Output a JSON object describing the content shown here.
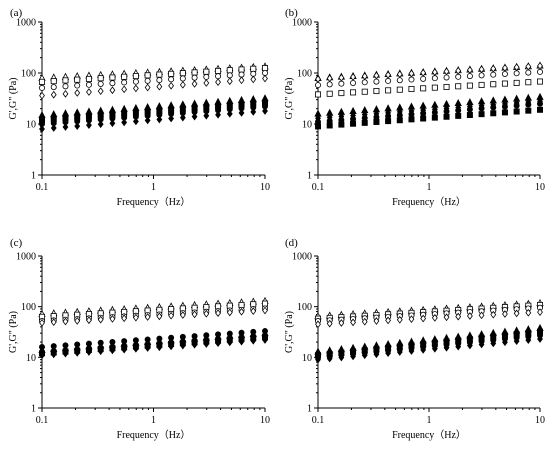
{
  "chart_data": [
    {
      "type": "scatter",
      "panel_label": "(a)",
      "xlabel": "Frequency（Hz）",
      "ylabel": "G',G\" (Pa)",
      "xscale": "log",
      "yscale": "log",
      "xlim": [
        0.1,
        10
      ],
      "ylim": [
        1,
        1000
      ],
      "x_ticks": [
        "0.1",
        "1",
        "10"
      ],
      "y_ticks": [
        "1",
        "10",
        "100",
        "1000"
      ],
      "grid": false,
      "n_points": 20,
      "series": [
        {
          "marker": "triangle",
          "filled": false,
          "start": 80,
          "end": 135
        },
        {
          "marker": "square",
          "filled": false,
          "start": 67,
          "end": 125
        },
        {
          "marker": "circle",
          "filled": false,
          "start": 51,
          "end": 100
        },
        {
          "marker": "diamond",
          "filled": false,
          "start": 36,
          "end": 78
        },
        {
          "marker": "triangle",
          "filled": true,
          "start": 15,
          "end": 32
        },
        {
          "marker": "square",
          "filled": true,
          "start": 12,
          "end": 26
        },
        {
          "marker": "circle",
          "filled": true,
          "start": 10,
          "end": 22
        },
        {
          "marker": "diamond",
          "filled": true,
          "start": 8,
          "end": 18
        }
      ]
    },
    {
      "type": "scatter",
      "panel_label": "(b)",
      "xlabel": "Frequency（Hz）",
      "ylabel": "G',G\" (Pa)",
      "xscale": "log",
      "yscale": "log",
      "xlim": [
        0.1,
        10
      ],
      "ylim": [
        1,
        1000
      ],
      "x_ticks": [
        "0.1",
        "1",
        "10"
      ],
      "y_ticks": [
        "1",
        "10",
        "100",
        "1000"
      ],
      "grid": false,
      "n_points": 20,
      "series": [
        {
          "marker": "triangle",
          "filled": false,
          "start": 80,
          "end": 140
        },
        {
          "marker": "diamond",
          "filled": false,
          "start": 76,
          "end": 138
        },
        {
          "marker": "circle",
          "filled": false,
          "start": 58,
          "end": 105
        },
        {
          "marker": "square",
          "filled": false,
          "start": 38,
          "end": 68
        },
        {
          "marker": "triangle",
          "filled": true,
          "start": 16,
          "end": 34
        },
        {
          "marker": "diamond",
          "filled": true,
          "start": 13,
          "end": 28
        },
        {
          "marker": "circle",
          "filled": true,
          "start": 11,
          "end": 25
        },
        {
          "marker": "square",
          "filled": true,
          "start": 9,
          "end": 19
        }
      ]
    },
    {
      "type": "scatter",
      "panel_label": "(c)",
      "xlabel": "Frequency（Hz）",
      "ylabel": "G',G\" (Pa)",
      "xscale": "log",
      "yscale": "log",
      "xlim": [
        0.1,
        10
      ],
      "ylim": [
        1,
        1000
      ],
      "x_ticks": [
        "0.1",
        "1",
        "10"
      ],
      "y_ticks": [
        "1",
        "10",
        "100",
        "1000"
      ],
      "grid": false,
      "n_points": 20,
      "series": [
        {
          "marker": "triangle",
          "filled": false,
          "start": 72,
          "end": 130
        },
        {
          "marker": "square",
          "filled": false,
          "start": 63,
          "end": 115
        },
        {
          "marker": "circle",
          "filled": false,
          "start": 52,
          "end": 92
        },
        {
          "marker": "diamond",
          "filled": false,
          "start": 48,
          "end": 84
        },
        {
          "marker": "circle",
          "filled": true,
          "start": 16,
          "end": 33
        },
        {
          "marker": "triangle",
          "filled": true,
          "start": 14,
          "end": 30
        },
        {
          "marker": "square",
          "filled": true,
          "start": 12,
          "end": 25
        },
        {
          "marker": "diamond",
          "filled": true,
          "start": 11,
          "end": 22
        }
      ]
    },
    {
      "type": "scatter",
      "panel_label": "(d)",
      "xlabel": "Frequency（Hz）",
      "ylabel": "G',G\" (Pa)",
      "xscale": "log",
      "yscale": "log",
      "xlim": [
        0.1,
        10
      ],
      "ylim": [
        1,
        1000
      ],
      "x_ticks": [
        "0.1",
        "1",
        "10"
      ],
      "y_ticks": [
        "1",
        "10",
        "100",
        "1000"
      ],
      "grid": false,
      "n_points": 20,
      "series": [
        {
          "marker": "triangle",
          "filled": false,
          "start": 65,
          "end": 118
        },
        {
          "marker": "square",
          "filled": false,
          "start": 58,
          "end": 108
        },
        {
          "marker": "circle",
          "filled": false,
          "start": 52,
          "end": 95
        },
        {
          "marker": "diamond",
          "filled": false,
          "start": 45,
          "end": 78
        },
        {
          "marker": "triangle",
          "filled": true,
          "start": 13,
          "end": 38
        },
        {
          "marker": "square",
          "filled": true,
          "start": 11,
          "end": 32
        },
        {
          "marker": "circle",
          "filled": true,
          "start": 10,
          "end": 27
        },
        {
          "marker": "diamond",
          "filled": true,
          "start": 9,
          "end": 23
        }
      ]
    }
  ]
}
